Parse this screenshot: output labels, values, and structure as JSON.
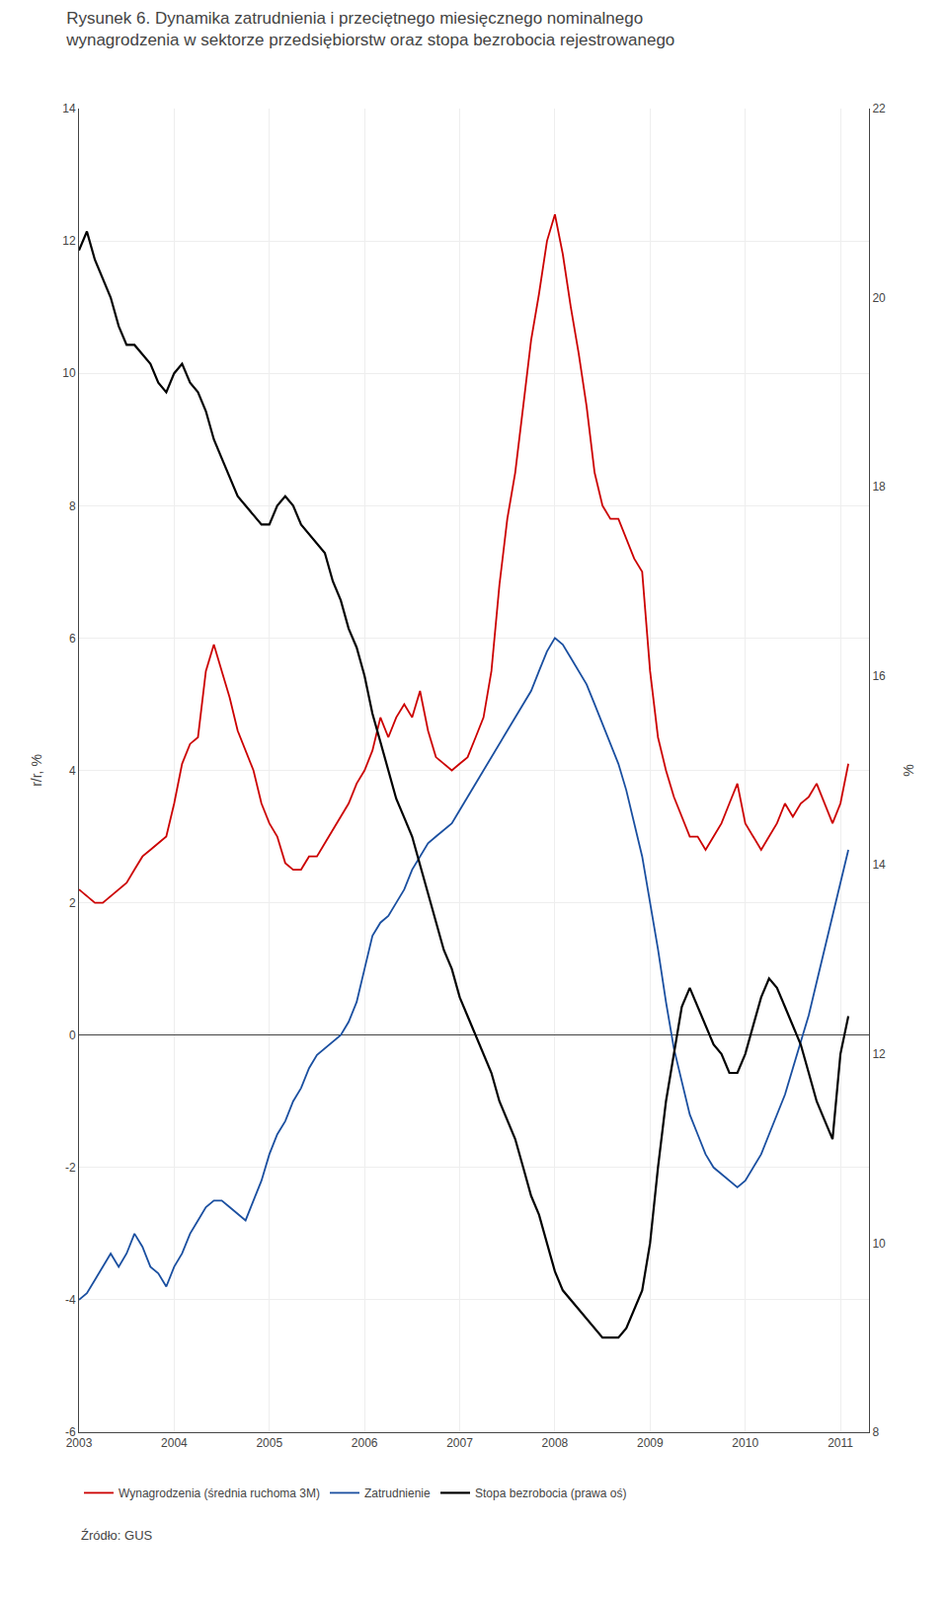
{
  "chart_data": {
    "type": "line",
    "title": "Rysunek 6. Dynamika zatrudnienia i przeciętnego miesięcznego nominalnego\nwynagrodzenia w sektorze przedsiębiorstw oraz stopa bezrobocia rejestrowanego",
    "y_label": "r/r, %",
    "y2_label": "%",
    "annotations": [
      "Źródło: GUS"
    ],
    "xlim": [
      2003,
      2011.3
    ],
    "xticks": [
      2003,
      2004,
      2005,
      2006,
      2007,
      2008,
      2009,
      2010,
      2011
    ],
    "ylim": [
      -6,
      14
    ],
    "yticks": [
      -6,
      -4,
      -2,
      0,
      2,
      4,
      6,
      8,
      10,
      12,
      14
    ],
    "y2lim": [
      8,
      22
    ],
    "y2ticks": [
      8,
      10,
      12,
      14,
      16,
      18,
      20,
      22
    ],
    "grid": true,
    "legend": "bottom",
    "x": [
      2003.0,
      2003.083,
      2003.167,
      2003.25,
      2003.333,
      2003.417,
      2003.5,
      2003.583,
      2003.667,
      2003.75,
      2003.833,
      2003.917,
      2004.0,
      2004.083,
      2004.167,
      2004.25,
      2004.333,
      2004.417,
      2004.5,
      2004.583,
      2004.667,
      2004.75,
      2004.833,
      2004.917,
      2005.0,
      2005.083,
      2005.167,
      2005.25,
      2005.333,
      2005.417,
      2005.5,
      2005.583,
      2005.667,
      2005.75,
      2005.833,
      2005.917,
      2006.0,
      2006.083,
      2006.167,
      2006.25,
      2006.333,
      2006.417,
      2006.5,
      2006.583,
      2006.667,
      2006.75,
      2006.833,
      2006.917,
      2007.0,
      2007.083,
      2007.167,
      2007.25,
      2007.333,
      2007.417,
      2007.5,
      2007.583,
      2007.667,
      2007.75,
      2007.833,
      2007.917,
      2008.0,
      2008.083,
      2008.167,
      2008.25,
      2008.333,
      2008.417,
      2008.5,
      2008.583,
      2008.667,
      2008.75,
      2008.833,
      2008.917,
      2009.0,
      2009.083,
      2009.167,
      2009.25,
      2009.333,
      2009.417,
      2009.5,
      2009.583,
      2009.667,
      2009.75,
      2009.833,
      2009.917,
      2010.0,
      2010.083,
      2010.167,
      2010.25,
      2010.333,
      2010.417,
      2010.5,
      2010.583,
      2010.667,
      2010.75,
      2010.833,
      2010.917,
      2011.0,
      2011.083
    ],
    "series": [
      {
        "name": "Wynagrodzenia (średnia ruchoma 3M)",
        "color": "#cc0000",
        "values": [
          2.2,
          2.1,
          2.0,
          2.0,
          2.1,
          2.2,
          2.3,
          2.5,
          2.7,
          2.8,
          2.9,
          3.0,
          3.5,
          4.1,
          4.4,
          4.5,
          5.5,
          5.9,
          5.5,
          5.1,
          4.6,
          4.3,
          4.0,
          3.5,
          3.2,
          3.0,
          2.6,
          2.5,
          2.5,
          2.7,
          2.7,
          2.9,
          3.1,
          3.3,
          3.5,
          3.8,
          4.0,
          4.3,
          4.8,
          4.5,
          4.8,
          5.0,
          4.8,
          5.2,
          4.6,
          4.2,
          4.1,
          4.0,
          4.1,
          4.2,
          4.5,
          4.8,
          5.5,
          6.8,
          7.8,
          8.5,
          9.5,
          10.5,
          11.2,
          12.0,
          12.4,
          11.8,
          11.0,
          10.3,
          9.5,
          8.5,
          8.0,
          7.8,
          7.8,
          7.5,
          7.2,
          7.0,
          5.5,
          4.5,
          4.0,
          3.6,
          3.3,
          3.0,
          3.0,
          2.8,
          3.0,
          3.2,
          3.5,
          3.8,
          3.2,
          3.0,
          2.8,
          3.0,
          3.2,
          3.5,
          3.3,
          3.5,
          3.6,
          3.8,
          3.5,
          3.2,
          3.5,
          4.1
        ]
      },
      {
        "name": "Zatrudnienie",
        "color": "#1a4fa0",
        "values": [
          -4.0,
          -3.9,
          -3.7,
          -3.5,
          -3.3,
          -3.5,
          -3.3,
          -3.0,
          -3.2,
          -3.5,
          -3.6,
          -3.8,
          -3.5,
          -3.3,
          -3.0,
          -2.8,
          -2.6,
          -2.5,
          -2.5,
          -2.6,
          -2.7,
          -2.8,
          -2.5,
          -2.2,
          -1.8,
          -1.5,
          -1.3,
          -1.0,
          -0.8,
          -0.5,
          -0.3,
          -0.2,
          -0.1,
          0.0,
          0.2,
          0.5,
          1.0,
          1.5,
          1.7,
          1.8,
          2.0,
          2.2,
          2.5,
          2.7,
          2.9,
          3.0,
          3.1,
          3.2,
          3.4,
          3.6,
          3.8,
          4.0,
          4.2,
          4.4,
          4.6,
          4.8,
          5.0,
          5.2,
          5.5,
          5.8,
          6.0,
          5.9,
          5.7,
          5.5,
          5.3,
          5.0,
          4.7,
          4.4,
          4.1,
          3.7,
          3.2,
          2.7,
          2.0,
          1.3,
          0.5,
          -0.2,
          -0.7,
          -1.2,
          -1.5,
          -1.8,
          -2.0,
          -2.1,
          -2.2,
          -2.3,
          -2.2,
          -2.0,
          -1.8,
          -1.5,
          -1.2,
          -0.9,
          -0.5,
          -0.1,
          0.3,
          0.8,
          1.3,
          1.8,
          2.3,
          2.8
        ]
      },
      {
        "name": "Stopa bezrobocia (prawa oś)",
        "color": "#000000",
        "axis": "y2",
        "values": [
          20.5,
          20.7,
          20.4,
          20.2,
          20.0,
          19.7,
          19.5,
          19.5,
          19.4,
          19.3,
          19.1,
          19.0,
          19.2,
          19.3,
          19.1,
          19.0,
          18.8,
          18.5,
          18.3,
          18.1,
          17.9,
          17.8,
          17.7,
          17.6,
          17.6,
          17.8,
          17.9,
          17.8,
          17.6,
          17.5,
          17.4,
          17.3,
          17.0,
          16.8,
          16.5,
          16.3,
          16.0,
          15.6,
          15.3,
          15.0,
          14.7,
          14.5,
          14.3,
          14.0,
          13.7,
          13.4,
          13.1,
          12.9,
          12.6,
          12.4,
          12.2,
          12.0,
          11.8,
          11.5,
          11.3,
          11.1,
          10.8,
          10.5,
          10.3,
          10.0,
          9.7,
          9.5,
          9.4,
          9.3,
          9.2,
          9.1,
          9.0,
          9.0,
          9.0,
          9.1,
          9.3,
          9.5,
          10.0,
          10.8,
          11.5,
          12.0,
          12.5,
          12.7,
          12.5,
          12.3,
          12.1,
          12.0,
          11.8,
          11.8,
          12.0,
          12.3,
          12.6,
          12.8,
          12.7,
          12.5,
          12.3,
          12.1,
          11.8,
          11.5,
          11.3,
          11.1,
          12.0,
          12.4
        ]
      }
    ]
  }
}
